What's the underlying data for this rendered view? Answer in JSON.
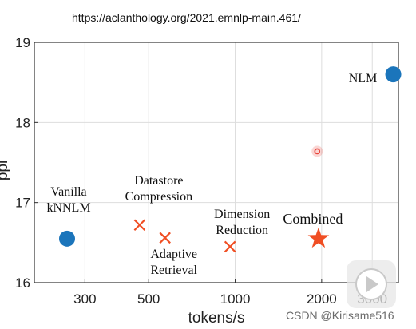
{
  "header": {
    "url": "https://aclanthology.org/2021.emnlp-main.461/"
  },
  "watermark": {
    "text": "CSDN @Kirisame516"
  },
  "chart_data": {
    "type": "scatter",
    "title": "",
    "xlabel": "tokens/s",
    "ylabel": "ppl",
    "x_scale": "log",
    "xlim": [
      200,
      3700
    ],
    "ylim": [
      16,
      19
    ],
    "x_ticks": [
      300,
      500,
      1000,
      2000,
      3000
    ],
    "x_tick_labels": [
      "300",
      "500",
      "1000",
      "2000",
      "3000"
    ],
    "y_ticks": [
      16,
      17,
      18,
      19
    ],
    "y_tick_labels": [
      "16",
      "17",
      "18",
      "19"
    ],
    "grid": true,
    "points": [
      {
        "label": [
          "Vanilla",
          "kNNLM"
        ],
        "x": 260,
        "y": 16.55,
        "marker": "circle",
        "color": "#1b75bb"
      },
      {
        "label": [
          "NLM"
        ],
        "x": 3550,
        "y": 18.6,
        "marker": "circle",
        "color": "#1b75bb"
      },
      {
        "label": [
          "Datastore",
          "Compression"
        ],
        "x": 465,
        "y": 16.72,
        "marker": "x",
        "color": "#f04e23"
      },
      {
        "label": [
          "Adaptive",
          "Retrieval"
        ],
        "x": 570,
        "y": 16.56,
        "marker": "x",
        "color": "#f04e23"
      },
      {
        "label": [
          "Dimension",
          "Reduction"
        ],
        "x": 960,
        "y": 16.45,
        "marker": "x",
        "color": "#f04e23"
      },
      {
        "label": [
          "Combined"
        ],
        "x": 1950,
        "y": 16.55,
        "marker": "star",
        "color": "#f04e23"
      },
      {
        "label": [],
        "x": 1930,
        "y": 17.64,
        "marker": "small-circle",
        "color": "#e8453c"
      }
    ]
  }
}
